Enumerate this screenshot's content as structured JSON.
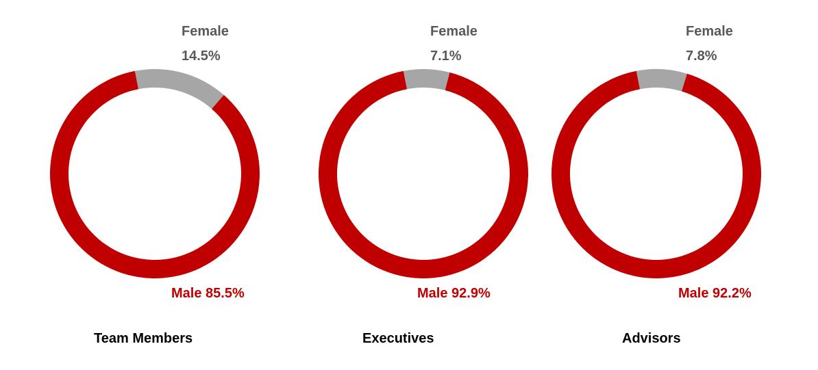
{
  "colors": {
    "male": "#c00000",
    "female": "#a6a6a6",
    "female_text": "#595959",
    "group_text": "#000000"
  },
  "chart_data": [
    {
      "type": "pie",
      "variant": "donut",
      "group": "Team Members",
      "slices": [
        {
          "name": "Female",
          "value": 14.5,
          "label": "14.5%"
        },
        {
          "name": "Male",
          "value": 85.5,
          "label": "85.5%"
        }
      ],
      "female_label": "Female",
      "female_value_text": "14.5%",
      "male_text": "Male 85.5%"
    },
    {
      "type": "pie",
      "variant": "donut",
      "group": "Executives",
      "slices": [
        {
          "name": "Female",
          "value": 7.1,
          "label": "7.1%"
        },
        {
          "name": "Male",
          "value": 92.9,
          "label": "92.9%"
        }
      ],
      "female_label": "Female",
      "female_value_text": "7.1%",
      "male_text": "Male 92.9%"
    },
    {
      "type": "pie",
      "variant": "donut",
      "group": "Advisors",
      "slices": [
        {
          "name": "Female",
          "value": 7.8,
          "label": "7.8%"
        },
        {
          "name": "Male",
          "value": 92.2,
          "label": "92.2%"
        }
      ],
      "female_label": "Female",
      "female_value_text": "7.8%",
      "male_text": "Male 92.2%"
    }
  ]
}
